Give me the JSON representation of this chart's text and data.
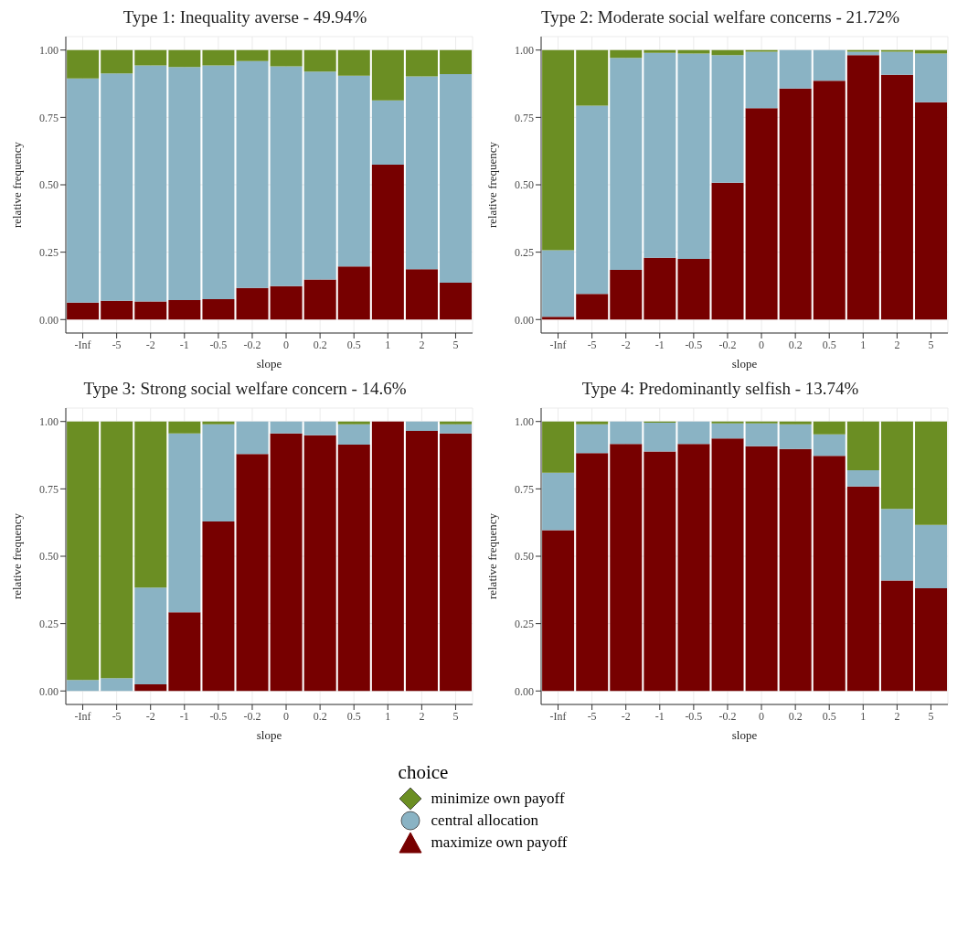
{
  "chart_data": [
    {
      "type": "bar",
      "stacked": true,
      "title": "Type 1: Inequality averse - 49.94%",
      "xlabel": "slope",
      "ylabel": "relative frequency",
      "categories": [
        "-Inf",
        "-5",
        "-2",
        "-1",
        "-0.5",
        "-0.2",
        "0",
        "0.2",
        "0.5",
        "1",
        "2",
        "5"
      ],
      "ylim": [
        -0.05,
        1.05
      ],
      "yticks": [
        {
          "value": 0,
          "label": "0.00"
        },
        {
          "value": 0.25,
          "label": "0.25"
        },
        {
          "value": 0.5,
          "label": "0.50"
        },
        {
          "value": 0.75,
          "label": "0.75"
        },
        {
          "value": 1,
          "label": "1.00"
        }
      ],
      "grid": true,
      "series": [
        {
          "color": "#770000",
          "values": [
            0.063,
            0.07,
            0.067,
            0.072,
            0.076,
            0.117,
            0.124,
            0.149,
            0.197,
            0.575,
            0.187,
            0.137
          ]
        },
        {
          "color": "#8ab3c4",
          "values": [
            0.832,
            0.843,
            0.876,
            0.865,
            0.867,
            0.842,
            0.816,
            0.771,
            0.708,
            0.238,
            0.715,
            0.774
          ]
        },
        {
          "color": "#6b8e23",
          "values": [
            0.105,
            0.087,
            0.057,
            0.063,
            0.057,
            0.041,
            0.06,
            0.08,
            0.095,
            0.187,
            0.098,
            0.089
          ]
        }
      ]
    },
    {
      "type": "bar",
      "stacked": true,
      "title": "Type 2: Moderate social welfare concerns - 21.72%",
      "xlabel": "slope",
      "ylabel": "relative frequency",
      "categories": [
        "-Inf",
        "-5",
        "-2",
        "-1",
        "-0.5",
        "-0.2",
        "0",
        "0.2",
        "0.5",
        "1",
        "2",
        "5"
      ],
      "ylim": [
        -0.05,
        1.05
      ],
      "yticks": [
        {
          "value": 0,
          "label": "0.00"
        },
        {
          "value": 0.25,
          "label": "0.25"
        },
        {
          "value": 0.5,
          "label": "0.50"
        },
        {
          "value": 0.75,
          "label": "0.75"
        },
        {
          "value": 1,
          "label": "1.00"
        }
      ],
      "grid": true,
      "series": [
        {
          "color": "#770000",
          "values": [
            0.01,
            0.095,
            0.184,
            0.229,
            0.225,
            0.508,
            0.784,
            0.857,
            0.886,
            0.981,
            0.908,
            0.806
          ]
        },
        {
          "color": "#8ab3c4",
          "values": [
            0.247,
            0.699,
            0.787,
            0.761,
            0.762,
            0.473,
            0.21,
            0.143,
            0.114,
            0.013,
            0.086,
            0.181
          ]
        },
        {
          "color": "#6b8e23",
          "values": [
            0.743,
            0.206,
            0.029,
            0.01,
            0.013,
            0.019,
            0.006,
            0,
            0,
            0.006,
            0.006,
            0.013
          ]
        }
      ]
    },
    {
      "type": "bar",
      "stacked": true,
      "title": "Type 3: Strong social welfare concern - 14.6%",
      "xlabel": "slope",
      "ylabel": "relative frequency",
      "categories": [
        "-Inf",
        "-5",
        "-2",
        "-1",
        "-0.5",
        "-0.2",
        "0",
        "0.2",
        "0.5",
        "1",
        "2",
        "5"
      ],
      "ylim": [
        -0.05,
        1.05
      ],
      "yticks": [
        {
          "value": 0,
          "label": "0.00"
        },
        {
          "value": 0.25,
          "label": "0.25"
        },
        {
          "value": 0.5,
          "label": "0.50"
        },
        {
          "value": 0.75,
          "label": "0.75"
        },
        {
          "value": 1,
          "label": "1.00"
        }
      ],
      "grid": true,
      "series": [
        {
          "color": "#770000",
          "values": [
            0,
            0,
            0.025,
            0.292,
            0.629,
            0.879,
            0.956,
            0.949,
            0.914,
            1,
            0.965,
            0.956
          ]
        },
        {
          "color": "#8ab3c4",
          "values": [
            0.041,
            0.048,
            0.359,
            0.664,
            0.361,
            0.121,
            0.044,
            0.051,
            0.076,
            0,
            0.035,
            0.034
          ]
        },
        {
          "color": "#6b8e23",
          "values": [
            0.959,
            0.952,
            0.616,
            0.044,
            0.01,
            0,
            0,
            0,
            0.01,
            0,
            0,
            0.01
          ]
        }
      ]
    },
    {
      "type": "bar",
      "stacked": true,
      "title": "Type 4: Predominantly selfish - 13.74%",
      "xlabel": "slope",
      "ylabel": "relative frequency",
      "categories": [
        "-Inf",
        "-5",
        "-2",
        "-1",
        "-0.5",
        "-0.2",
        "0",
        "0.2",
        "0.5",
        "1",
        "2",
        "5"
      ],
      "ylim": [
        -0.05,
        1.05
      ],
      "yticks": [
        {
          "value": 0,
          "label": "0.00"
        },
        {
          "value": 0.25,
          "label": "0.25"
        },
        {
          "value": 0.5,
          "label": "0.50"
        },
        {
          "value": 0.75,
          "label": "0.75"
        },
        {
          "value": 1,
          "label": "1.00"
        }
      ],
      "grid": true,
      "legend": "bottom",
      "legend_title": "choice",
      "series": [
        {
          "name": "maximize own payoff",
          "color": "#770000",
          "values": [
            0.597,
            0.883,
            0.917,
            0.889,
            0.917,
            0.937,
            0.908,
            0.898,
            0.873,
            0.759,
            0.41,
            0.381
          ]
        },
        {
          "name": "central allocation",
          "color": "#8ab3c4",
          "values": [
            0.213,
            0.107,
            0.083,
            0.107,
            0.083,
            0.056,
            0.085,
            0.092,
            0.079,
            0.06,
            0.266,
            0.235
          ]
        },
        {
          "name": "minimize own payoff",
          "color": "#6b8e23",
          "values": [
            0.19,
            0.01,
            0,
            0.004,
            0,
            0.007,
            0.007,
            0.01,
            0.048,
            0.181,
            0.324,
            0.384
          ]
        }
      ]
    }
  ]
}
